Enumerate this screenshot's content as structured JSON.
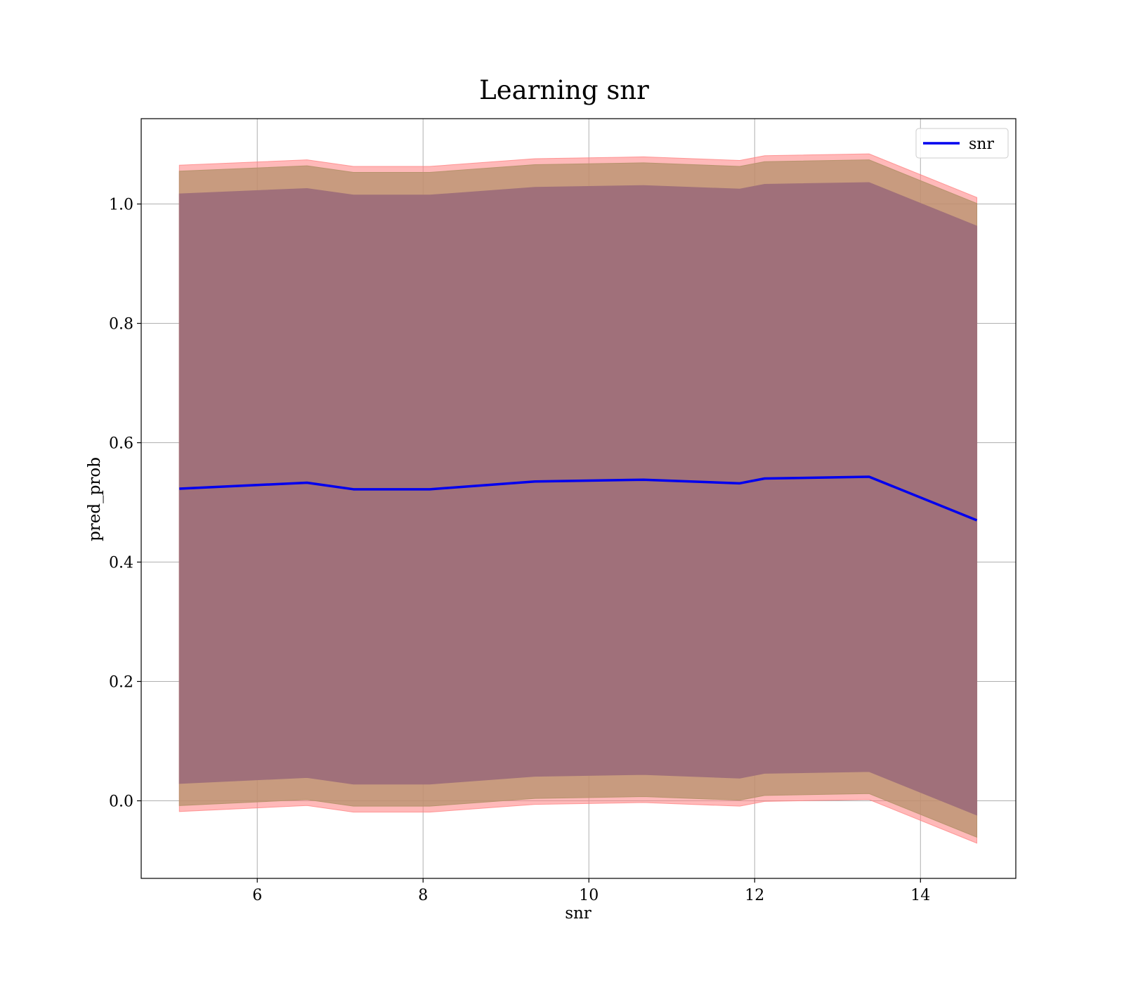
{
  "chart_data": {
    "type": "line",
    "title": "Learning snr",
    "xlabel": "snr",
    "ylabel": "pred_prob",
    "xlim": [
      4.6,
      15.15
    ],
    "ylim": [
      -0.13,
      1.143
    ],
    "xticks": [
      6,
      8,
      10,
      12,
      14
    ],
    "yticks": [
      0.0,
      0.2,
      0.4,
      0.6,
      0.8,
      1.0
    ],
    "ytick_labels": [
      "0.0",
      "0.2",
      "0.4",
      "0.6",
      "0.8",
      "1.0"
    ],
    "grid": true,
    "legend": {
      "position": "top-right",
      "entries": [
        "snr"
      ]
    },
    "x": [
      5.06,
      6.6,
      7.16,
      8.08,
      9.35,
      10.66,
      11.82,
      12.12,
      13.38,
      14.68
    ],
    "series": [
      {
        "name": "snr",
        "color": "#0000ee",
        "values": [
          0.523,
          0.533,
          0.522,
          0.522,
          0.535,
          0.538,
          0.532,
          0.54,
          0.543,
          0.47
        ]
      }
    ],
    "bands": [
      {
        "color": "#ff7f7f",
        "opacity": 0.55,
        "upper": [
          1.065,
          1.074,
          1.063,
          1.063,
          1.076,
          1.079,
          1.073,
          1.081,
          1.084,
          1.011
        ],
        "lower": [
          -0.018,
          -0.008,
          -0.019,
          -0.019,
          -0.006,
          -0.003,
          -0.009,
          -0.001,
          0.002,
          -0.071
        ]
      },
      {
        "color": "#b5926c",
        "opacity": 0.75,
        "upper": [
          1.055,
          1.064,
          1.053,
          1.053,
          1.066,
          1.069,
          1.063,
          1.071,
          1.074,
          1.001
        ],
        "lower": [
          -0.008,
          0.002,
          -0.009,
          -0.009,
          0.004,
          0.007,
          0.001,
          0.009,
          0.012,
          -0.061
        ]
      },
      {
        "color": "#a0707a",
        "opacity": 1.0,
        "upper": [
          1.017,
          1.026,
          1.015,
          1.015,
          1.028,
          1.031,
          1.025,
          1.033,
          1.036,
          0.963
        ],
        "lower": [
          0.029,
          0.039,
          0.028,
          0.028,
          0.041,
          0.044,
          0.038,
          0.046,
          0.049,
          -0.024
        ]
      }
    ]
  }
}
